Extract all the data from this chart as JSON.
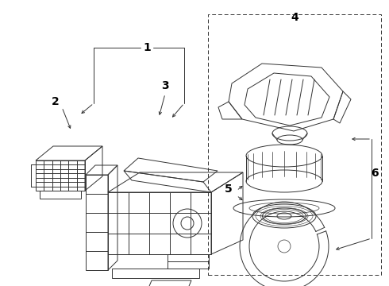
{
  "background_color": "#ffffff",
  "line_color": "#333333",
  "label_color": "#000000",
  "fig_width": 4.9,
  "fig_height": 3.6,
  "dpi": 100,
  "xlim": [
    0,
    490
  ],
  "ylim": [
    0,
    360
  ]
}
